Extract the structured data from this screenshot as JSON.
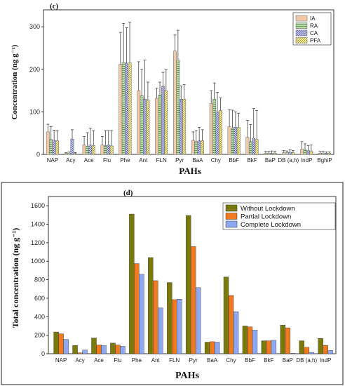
{
  "chart_data": [
    {
      "panel_label": "(c)",
      "type": "bar",
      "ylabel": "Concentration (ng g⁻¹)",
      "xlabel": "PAHs",
      "ylim": [
        0,
        340
      ],
      "yticks": [
        0,
        100,
        200,
        300
      ],
      "error_bars": true,
      "legend_position": "top-right",
      "categories": [
        "NAP",
        "Acy",
        "Ace",
        "Flu",
        "Phe",
        "Ant",
        "FLN",
        "Pyr",
        "BaA",
        "Chy",
        "BbF",
        "BkF",
        "BaP",
        "DB (a,h)",
        "IndP",
        "BghiP"
      ],
      "series": [
        {
          "name": "IA",
          "color": "#f2c9a8",
          "pattern": "solid",
          "values": [
            53,
            2,
            22,
            22,
            212,
            150,
            132,
            243,
            33,
            120,
            65,
            40,
            3,
            4,
            12,
            3
          ],
          "errors": [
            18,
            2,
            20,
            20,
            75,
            68,
            24,
            38,
            20,
            30,
            40,
            40,
            4,
            5,
            18,
            4
          ]
        },
        {
          "name": "RA",
          "color": "#b8dca6",
          "pattern": "hatch",
          "values": [
            35,
            3,
            19,
            21,
            216,
            138,
            140,
            222,
            30,
            130,
            62,
            30,
            3,
            4,
            11,
            3
          ],
          "errors": [
            30,
            3,
            32,
            35,
            92,
            62,
            30,
            70,
            26,
            38,
            42,
            40,
            4,
            4,
            14,
            4
          ]
        },
        {
          "name": "CA",
          "color": "#c7c9ef",
          "pattern": "cross",
          "values": [
            33,
            36,
            22,
            22,
            215,
            130,
            160,
            130,
            32,
            100,
            64,
            38,
            3,
            5,
            9,
            3
          ],
          "errors": [
            24,
            22,
            40,
            34,
            83,
            92,
            33,
            31,
            32,
            46,
            36,
            70,
            5,
            6,
            12,
            3
          ]
        },
        {
          "name": "PFA",
          "color": "#f6ec9a",
          "pattern": "diag",
          "values": [
            32,
            2,
            21,
            20,
            215,
            128,
            150,
            130,
            32,
            103,
            63,
            35,
            3,
            4,
            8,
            3
          ],
          "errors": [
            24,
            2,
            35,
            36,
            96,
            42,
            49,
            34,
            26,
            30,
            34,
            68,
            4,
            5,
            14,
            3
          ]
        }
      ]
    },
    {
      "panel_label": "(d)",
      "type": "bar",
      "ylabel": "Total concentration (ng g⁻¹)",
      "xlabel": "PAHs",
      "ylim": [
        0,
        1700
      ],
      "yticks": [
        0,
        200,
        400,
        600,
        800,
        1000,
        1200,
        1400,
        1600
      ],
      "legend_position": "top-right",
      "categories": [
        "NAP",
        "Acy",
        "Ace",
        "Flu",
        "Phe",
        "Ant",
        "FLN",
        "Pyr",
        "BaA",
        "Chy",
        "BbF",
        "BkF",
        "BaP",
        "DB (a,h)",
        "IndP"
      ],
      "series": [
        {
          "name": "Without Lockdown",
          "color": "#7a7a0c",
          "values": [
            235,
            90,
            170,
            115,
            1510,
            1040,
            770,
            1495,
            125,
            830,
            300,
            140,
            310,
            140,
            165
          ]
        },
        {
          "name": "Partial Lockdown",
          "color": "#ef7a22",
          "values": [
            215,
            10,
            95,
            95,
            975,
            790,
            585,
            1160,
            130,
            630,
            290,
            140,
            280,
            70,
            90
          ]
        },
        {
          "name": "Complete Lockdown",
          "color": "#8fa8f2",
          "values": [
            155,
            40,
            90,
            80,
            860,
            495,
            590,
            715,
            125,
            455,
            255,
            145,
            5,
            15,
            35
          ]
        }
      ]
    }
  ]
}
